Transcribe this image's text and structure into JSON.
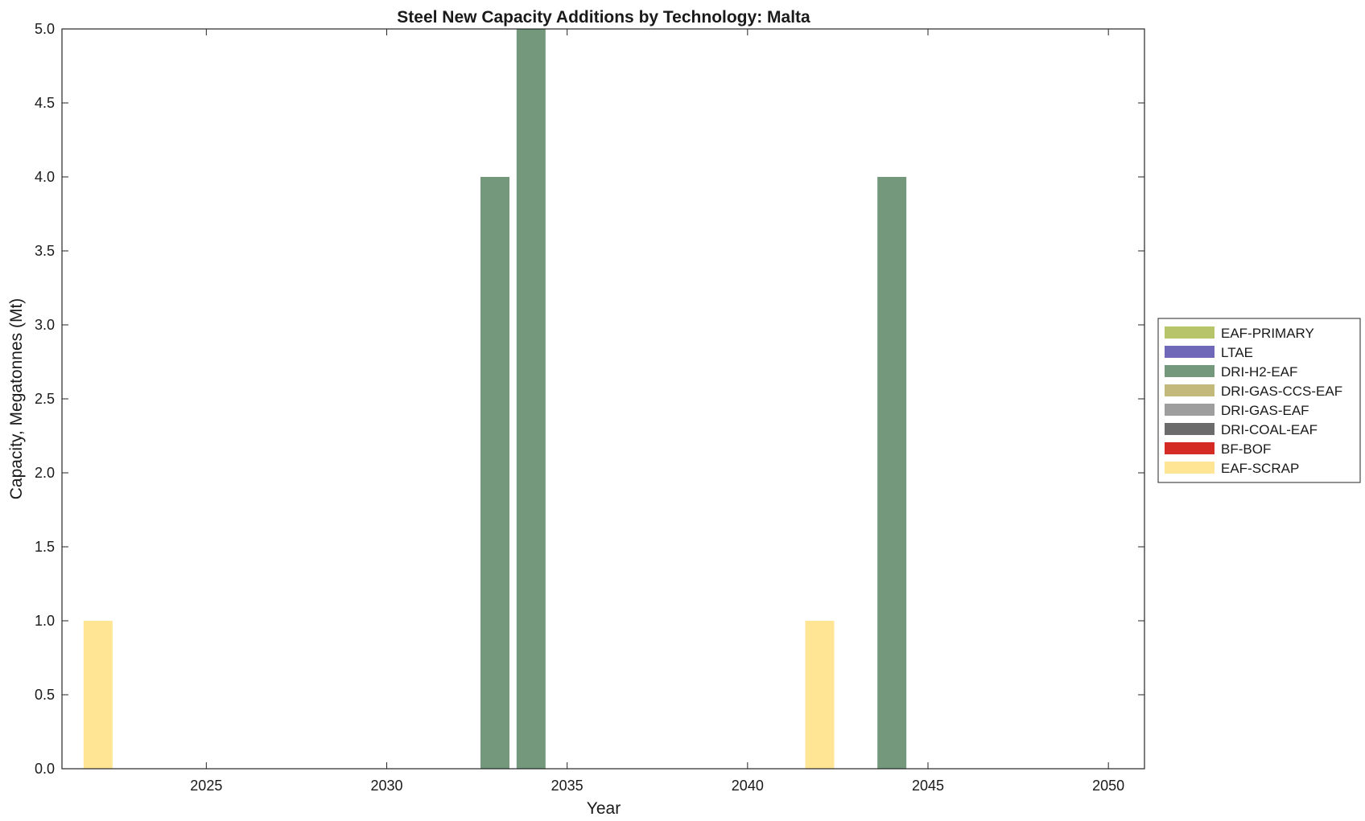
{
  "chart_data": {
    "type": "bar",
    "stacked": true,
    "title": "Steel New Capacity Additions by Technology: Malta",
    "xlabel": "Year",
    "ylabel": "Capacity, Megatonnes (Mt)",
    "xlim": [
      2021,
      2051
    ],
    "ylim": [
      0,
      5
    ],
    "xticks": [
      "2025",
      "2030",
      "2035",
      "2040",
      "2045",
      "2050"
    ],
    "yticks": [
      "0.0",
      "0.5",
      "1.0",
      "1.5",
      "2.0",
      "2.5",
      "3.0",
      "3.5",
      "4.0",
      "4.5",
      "5.0"
    ],
    "grid": false,
    "legend_position": "right",
    "x": [
      2022,
      2033,
      2034,
      2042,
      2044
    ],
    "series": [
      {
        "name": "EAF-PRIMARY",
        "color": "#b8c46a",
        "values": [
          0,
          0,
          0,
          0,
          0
        ]
      },
      {
        "name": "LTAE",
        "color": "#6f68b8",
        "values": [
          0,
          0,
          0,
          0,
          0
        ]
      },
      {
        "name": "DRI-H2-EAF",
        "color": "#74987b",
        "values": [
          0,
          4,
          5,
          0,
          4
        ]
      },
      {
        "name": "DRI-GAS-CCS-EAF",
        "color": "#c2b97a",
        "values": [
          0,
          0,
          0,
          0,
          0
        ]
      },
      {
        "name": "DRI-GAS-EAF",
        "color": "#9e9e9e",
        "values": [
          0,
          0,
          0,
          0,
          0
        ]
      },
      {
        "name": "DRI-COAL-EAF",
        "color": "#6b6b6b",
        "values": [
          0,
          0,
          0,
          0,
          0
        ]
      },
      {
        "name": "BF-BOF",
        "color": "#d42c24",
        "values": [
          0,
          0,
          0,
          0,
          0
        ]
      },
      {
        "name": "EAF-SCRAP",
        "color": "#ffe594",
        "values": [
          1,
          0,
          0,
          1,
          0
        ]
      }
    ]
  }
}
